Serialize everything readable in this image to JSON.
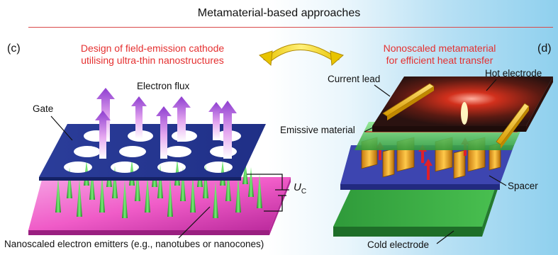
{
  "header": {
    "title": "Metamaterial-based approaches"
  },
  "left_panel": {
    "letter": "(c)",
    "caption_line1": "Design of field-emission cathode",
    "caption_line2": "utilising ultra-thin nanostructures",
    "labels": {
      "electron_flux": "Electron flux",
      "gate": "Gate",
      "voltage_symbol": "U",
      "voltage_subscript": "C",
      "emitters": "Nanoscaled electron emitters (e.g., nanotubes or nanocones)"
    }
  },
  "right_panel": {
    "letter": "(d)",
    "caption_line1": "Nonoscaled metamaterial",
    "caption_line2": "for efficient heat transfer",
    "labels": {
      "current_lead": "Current lead",
      "hot_electrode": "Hot electrode",
      "emissive_material": "Emissive material",
      "spacer": "Spacer",
      "cold_electrode": "Cold electrode"
    }
  },
  "colors": {
    "gate_blue": "#2b3d9a",
    "base_pink": "#f05cc8",
    "emitter_green": "#3cc93c",
    "arrow_purple": "#9a4fd6",
    "caption_red": "#e53030",
    "lead_yellow": "#f2c219",
    "cold_green": "#2f9a3a",
    "hot_dark": "#3a1410"
  }
}
